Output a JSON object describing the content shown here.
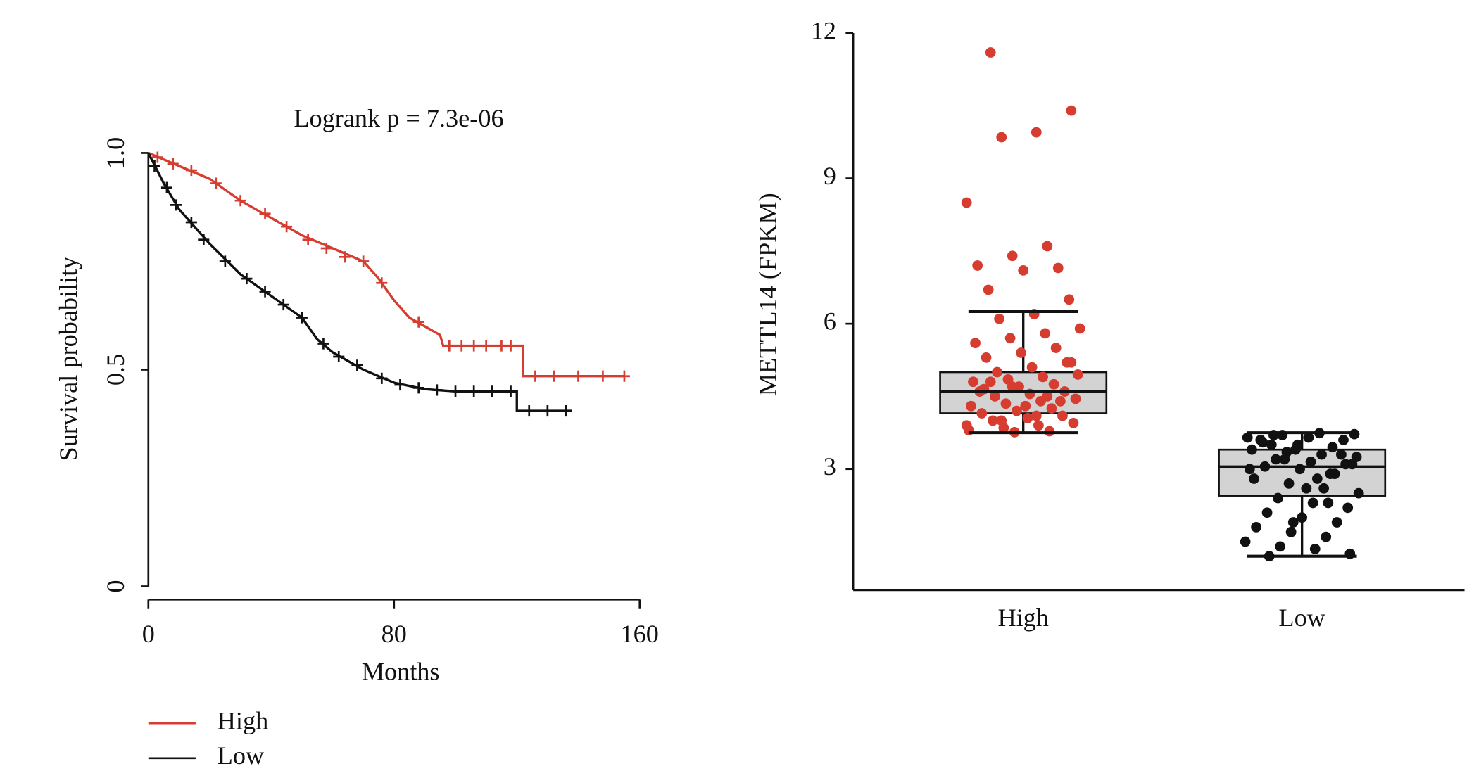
{
  "chart_data": [
    {
      "type": "survival",
      "title": "Logrank p = 7.3e-06",
      "x_label": "Months",
      "y_label": "Survival probability",
      "xlim": [
        0,
        160
      ],
      "xticks": [
        0,
        80,
        160
      ],
      "ylim": [
        0,
        1
      ],
      "yticks": [
        0,
        {
          "value": 0.5,
          "label": "0.5"
        },
        {
          "value": 1,
          "label": "1.0"
        }
      ],
      "legend": "bottom-left",
      "series": [
        {
          "name": "High",
          "color": "#d63c2f",
          "x": [
            0,
            10,
            20,
            30,
            40,
            50,
            60,
            70,
            75,
            80,
            85,
            90,
            95,
            96,
            122,
            122,
            155
          ],
          "values": [
            1.0,
            0.97,
            0.94,
            0.89,
            0.85,
            0.81,
            0.78,
            0.75,
            0.71,
            0.66,
            0.62,
            0.6,
            0.58,
            0.555,
            0.555,
            0.485,
            0.485
          ],
          "censor_x": [
            3,
            8,
            14,
            22,
            30,
            38,
            45,
            52,
            58,
            64,
            70,
            76,
            88,
            98,
            102,
            106,
            110,
            115,
            118,
            126,
            132,
            140,
            148,
            155
          ],
          "censor_y": [
            0.99,
            0.975,
            0.96,
            0.93,
            0.89,
            0.86,
            0.83,
            0.8,
            0.78,
            0.76,
            0.75,
            0.7,
            0.61,
            0.555,
            0.555,
            0.555,
            0.555,
            0.555,
            0.555,
            0.485,
            0.485,
            0.485,
            0.485,
            0.485
          ]
        },
        {
          "name": "Low",
          "color": "#111111",
          "x": [
            0,
            5,
            10,
            20,
            30,
            40,
            50,
            55,
            60,
            70,
            80,
            90,
            100,
            120,
            120,
            138
          ],
          "values": [
            1.0,
            0.93,
            0.87,
            0.79,
            0.72,
            0.67,
            0.62,
            0.57,
            0.54,
            0.5,
            0.47,
            0.455,
            0.45,
            0.45,
            0.405,
            0.405
          ],
          "censor_x": [
            2,
            6,
            9,
            14,
            18,
            25,
            32,
            38,
            44,
            50,
            57,
            62,
            68,
            76,
            82,
            88,
            94,
            100,
            106,
            112,
            118,
            124,
            130,
            136
          ],
          "censor_y": [
            0.97,
            0.92,
            0.88,
            0.84,
            0.8,
            0.75,
            0.71,
            0.68,
            0.65,
            0.62,
            0.56,
            0.53,
            0.51,
            0.48,
            0.465,
            0.458,
            0.453,
            0.45,
            0.45,
            0.45,
            0.45,
            0.405,
            0.405,
            0.405
          ]
        }
      ]
    },
    {
      "type": "box",
      "y_label": "METTL14 (FPKM)",
      "ylim": [
        0.5,
        12
      ],
      "yticks": [
        3,
        6,
        9,
        12
      ],
      "categories": [
        "High",
        "Low"
      ],
      "boxes": [
        {
          "color": "#d63c2f",
          "whisker_low": 3.75,
          "q1": 4.15,
          "median": 4.6,
          "q3": 5.0,
          "whisker_high": 6.25,
          "values": [
            11.6,
            10.4,
            9.95,
            9.85,
            8.5,
            7.6,
            7.4,
            7.2,
            7.15,
            7.1,
            6.7,
            6.5,
            6.2,
            6.1,
            5.9,
            5.8,
            5.7,
            5.6,
            5.5,
            5.4,
            5.3,
            5.2,
            5.1,
            5.0,
            4.95,
            4.9,
            4.85,
            4.8,
            4.75,
            4.7,
            4.65,
            4.6,
            4.55,
            4.5,
            4.45,
            4.4,
            4.35,
            4.3,
            4.25,
            4.2,
            4.15,
            4.1,
            4.05,
            4.0,
            3.95,
            3.9,
            3.85,
            3.8,
            3.78,
            3.76,
            4.6,
            4.4,
            4.3,
            4.8,
            5.2,
            4.1,
            4.0,
            3.9,
            4.5,
            4.7
          ]
        },
        {
          "color": "#111111",
          "whisker_low": 1.2,
          "q1": 2.45,
          "median": 3.05,
          "q3": 3.4,
          "whisker_high": 3.75,
          "values": [
            1.2,
            1.25,
            1.35,
            1.4,
            1.5,
            1.6,
            1.7,
            1.8,
            1.9,
            2.0,
            2.1,
            2.2,
            2.3,
            2.4,
            2.5,
            2.6,
            2.7,
            2.8,
            2.9,
            3.0,
            3.05,
            3.1,
            3.15,
            3.2,
            3.25,
            3.3,
            3.35,
            3.4,
            3.45,
            3.5,
            3.55,
            3.6,
            3.65,
            3.7,
            3.72,
            3.74,
            3.2,
            3.0,
            2.9,
            3.4,
            3.6,
            3.3,
            2.6,
            3.5,
            3.1,
            2.8,
            3.7,
            3.65,
            2.3,
            1.9
          ]
        }
      ]
    }
  ]
}
